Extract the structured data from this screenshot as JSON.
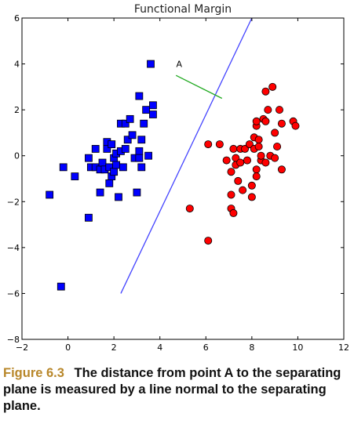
{
  "chart_data": {
    "type": "scatter",
    "title": "Functional Margin",
    "xlabel": "",
    "ylabel": "",
    "xlim": [
      -2,
      12
    ],
    "ylim": [
      -8,
      6
    ],
    "xticks": [
      "−2",
      "0",
      "2",
      "4",
      "6",
      "8",
      "10",
      "12"
    ],
    "yticks": [
      "6",
      "4",
      "2",
      "0",
      "−2",
      "−4",
      "−6",
      "−8"
    ],
    "grid": false,
    "legend": "none",
    "series": [
      {
        "marker": "square",
        "color": "#0000ff",
        "points": [
          [
            -0.8,
            -1.7
          ],
          [
            -0.3,
            -5.7
          ],
          [
            -0.2,
            -0.5
          ],
          [
            0.3,
            -0.9
          ],
          [
            0.9,
            -2.7
          ],
          [
            0.9,
            -0.1
          ],
          [
            1.0,
            -0.5
          ],
          [
            1.2,
            -0.5
          ],
          [
            1.2,
            0.3
          ],
          [
            1.4,
            -1.6
          ],
          [
            1.4,
            -0.6
          ],
          [
            1.5,
            -0.3
          ],
          [
            1.6,
            -0.6
          ],
          [
            1.7,
            0.3
          ],
          [
            1.7,
            0.6
          ],
          [
            1.8,
            -1.2
          ],
          [
            1.8,
            -0.5
          ],
          [
            1.9,
            -0.9
          ],
          [
            1.9,
            0.5
          ],
          [
            2.0,
            -0.1
          ],
          [
            2.0,
            -0.7
          ],
          [
            2.1,
            -0.4
          ],
          [
            2.1,
            0.1
          ],
          [
            2.2,
            -1.8
          ],
          [
            2.3,
            1.4
          ],
          [
            2.3,
            0.2
          ],
          [
            2.4,
            -0.5
          ],
          [
            2.5,
            0.3
          ],
          [
            2.5,
            1.4
          ],
          [
            2.6,
            0.7
          ],
          [
            2.7,
            1.6
          ],
          [
            2.8,
            0.9
          ],
          [
            2.9,
            -0.1
          ],
          [
            3.0,
            -1.6
          ],
          [
            3.1,
            0.2
          ],
          [
            3.1,
            2.6
          ],
          [
            3.2,
            0.7
          ],
          [
            3.3,
            1.4
          ],
          [
            3.2,
            -0.5
          ],
          [
            3.4,
            2.0
          ],
          [
            3.5,
            0.0
          ],
          [
            3.6,
            4.0
          ],
          [
            3.7,
            2.2
          ],
          [
            3.7,
            1.8
          ],
          [
            3.1,
            -0.1
          ]
        ]
      },
      {
        "marker": "circle",
        "color": "#ff0000",
        "points": [
          [
            5.3,
            -2.3
          ],
          [
            6.1,
            0.5
          ],
          [
            6.1,
            -3.7
          ],
          [
            6.6,
            0.5
          ],
          [
            6.9,
            -0.2
          ],
          [
            7.1,
            -0.7
          ],
          [
            7.1,
            -1.7
          ],
          [
            7.1,
            -2.3
          ],
          [
            7.2,
            -2.5
          ],
          [
            7.2,
            0.3
          ],
          [
            7.3,
            -0.1
          ],
          [
            7.3,
            -0.4
          ],
          [
            7.4,
            -1.1
          ],
          [
            7.5,
            0.3
          ],
          [
            7.5,
            -0.3
          ],
          [
            7.6,
            -1.5
          ],
          [
            7.7,
            0.3
          ],
          [
            7.8,
            -0.2
          ],
          [
            7.9,
            0.5
          ],
          [
            8.0,
            -1.8
          ],
          [
            8.0,
            -1.3
          ],
          [
            8.1,
            0.8
          ],
          [
            8.1,
            0.3
          ],
          [
            8.2,
            -0.6
          ],
          [
            8.2,
            -0.9
          ],
          [
            8.2,
            1.3
          ],
          [
            8.2,
            1.5
          ],
          [
            8.3,
            0.7
          ],
          [
            8.3,
            0.4
          ],
          [
            8.4,
            -0.2
          ],
          [
            8.4,
            0.0
          ],
          [
            8.5,
            1.6
          ],
          [
            8.6,
            1.5
          ],
          [
            8.6,
            -0.3
          ],
          [
            8.6,
            2.8
          ],
          [
            8.7,
            2.0
          ],
          [
            8.8,
            0.0
          ],
          [
            8.9,
            3.0
          ],
          [
            9.0,
            1.0
          ],
          [
            9.0,
            -0.1
          ],
          [
            9.1,
            0.4
          ],
          [
            9.2,
            2.0
          ],
          [
            9.3,
            1.4
          ],
          [
            9.3,
            -0.6
          ],
          [
            9.8,
            1.5
          ],
          [
            9.9,
            1.3
          ]
        ]
      }
    ],
    "separating_line": {
      "x": [
        2.3,
        8.0
      ],
      "y": [
        -6.0,
        6.0
      ],
      "color": "#4444ff"
    },
    "normal_line": {
      "x": [
        4.7,
        6.7
      ],
      "y": [
        3.5,
        2.5
      ],
      "color": "#22aa22"
    },
    "annotations": [
      {
        "text": "A",
        "x": 4.7,
        "y": 4.0,
        "point": [
          4.7,
          3.5
        ]
      }
    ]
  },
  "caption": {
    "label": "Figure 6.3",
    "text": "The distance from point A to the separating plane is measured by a line normal to the separating plane."
  }
}
